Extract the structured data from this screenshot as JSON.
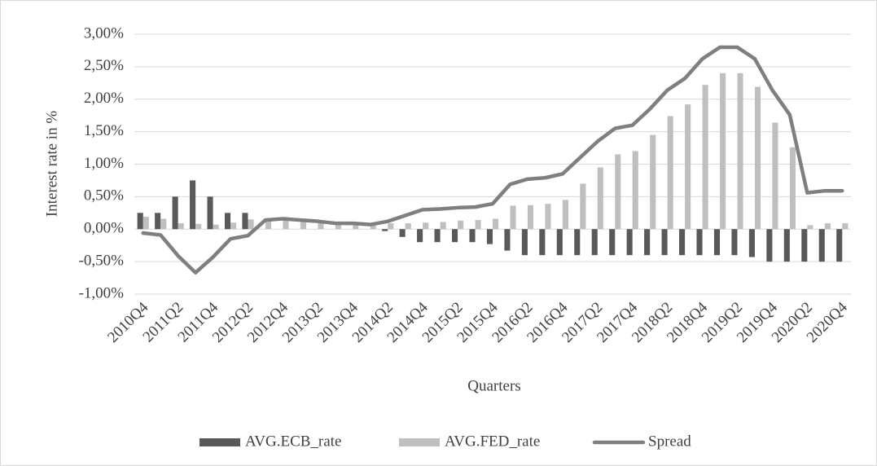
{
  "chart_data": {
    "type": "bar-line",
    "y_label": "Interest rate in %",
    "x_label": "Quarters",
    "categories": [
      "2010Q4",
      null,
      "2011Q2",
      null,
      "2011Q4",
      null,
      "2012Q2",
      null,
      "2012Q4",
      null,
      "2013Q2",
      null,
      "2013Q4",
      null,
      "2014Q2",
      null,
      "2014Q4",
      null,
      "2015Q2",
      null,
      "2015Q4",
      null,
      "2016Q2",
      null,
      "2016Q4",
      null,
      "2017Q2",
      null,
      "2017Q4",
      null,
      "2018Q2",
      null,
      "2018Q4",
      null,
      "2019Q2",
      null,
      "2019Q4",
      null,
      "2020Q2",
      null,
      "2020Q4"
    ],
    "series": [
      {
        "name": "AVG.ECB_rate",
        "type": "bar",
        "color": "#595959",
        "values": [
          0.25,
          0.25,
          0.5,
          0.75,
          0.5,
          0.25,
          0.25,
          0,
          0,
          0,
          0,
          0,
          0,
          0,
          -0.03,
          -0.12,
          -0.2,
          -0.2,
          -0.2,
          -0.2,
          -0.23,
          -0.33,
          -0.4,
          -0.4,
          -0.4,
          -0.4,
          -0.4,
          -0.4,
          -0.4,
          -0.4,
          -0.4,
          -0.4,
          -0.4,
          -0.4,
          -0.4,
          -0.43,
          -0.5,
          -0.5,
          -0.5,
          -0.5,
          -0.5
        ]
      },
      {
        "name": "AVG.FED_rate",
        "type": "bar",
        "color": "#bfbfbf",
        "values": [
          0.19,
          0.16,
          0.09,
          0.08,
          0.07,
          0.1,
          0.15,
          0.14,
          0.16,
          0.14,
          0.12,
          0.09,
          0.09,
          0.07,
          0.09,
          0.09,
          0.1,
          0.11,
          0.13,
          0.14,
          0.16,
          0.36,
          0.37,
          0.39,
          0.45,
          0.7,
          0.95,
          1.15,
          1.2,
          1.45,
          1.74,
          1.92,
          2.22,
          2.4,
          2.4,
          2.19,
          1.64,
          1.26,
          0.06,
          0.09,
          0.09
        ]
      },
      {
        "name": "Spread",
        "type": "line",
        "color": "#7f7f7f",
        "values": [
          -0.06,
          -0.09,
          -0.41,
          -0.67,
          -0.43,
          -0.15,
          -0.1,
          0.14,
          0.16,
          0.14,
          0.12,
          0.09,
          0.09,
          0.07,
          0.12,
          0.21,
          0.3,
          0.31,
          0.33,
          0.34,
          0.39,
          0.69,
          0.77,
          0.79,
          0.85,
          1.1,
          1.35,
          1.55,
          1.6,
          1.85,
          2.14,
          2.32,
          2.62,
          2.8,
          2.8,
          2.62,
          2.14,
          1.76,
          0.56,
          0.59,
          0.59
        ]
      }
    ],
    "ylim": [
      -1,
      3
    ],
    "yticks": [
      {
        "value": -1,
        "label": "-1,00%"
      },
      {
        "value": -0.5,
        "label": "-0,50%"
      },
      {
        "value": 0,
        "label": "0,00%"
      },
      {
        "value": 0.5,
        "label": "0,50%"
      },
      {
        "value": 1,
        "label": "1,00%"
      },
      {
        "value": 1.5,
        "label": "1,50%"
      },
      {
        "value": 2,
        "label": "2,00%"
      },
      {
        "value": 2.5,
        "label": "2,50%"
      },
      {
        "value": 3,
        "label": "3,00%"
      }
    ],
    "grid": true,
    "legend": "bottom"
  }
}
